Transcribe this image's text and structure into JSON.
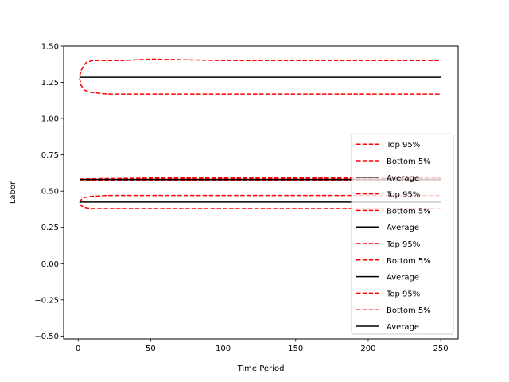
{
  "chart_data": {
    "type": "line",
    "title": "",
    "xlabel": "Time Period",
    "ylabel": "Labor",
    "xlim": [
      -10,
      262
    ],
    "ylim": [
      -0.52,
      1.5
    ],
    "xticks": [
      0,
      50,
      100,
      150,
      200,
      250
    ],
    "yticks": [
      -0.5,
      -0.25,
      0.0,
      0.25,
      0.5,
      0.75,
      1.0,
      1.25,
      1.5
    ],
    "xtick_labels": [
      "0",
      "50",
      "100",
      "150",
      "200",
      "250"
    ],
    "ytick_labels": [
      "−0.50",
      "−0.25",
      "0.00",
      "0.25",
      "0.50",
      "0.75",
      "1.00",
      "1.25",
      "1.50"
    ],
    "grid": false,
    "legend_position": "lower-right",
    "colors": {
      "band": "#ff0000",
      "average": "#000000"
    },
    "series": [
      {
        "name": "Top 95%",
        "style": "dashed",
        "color": "#ff0000",
        "x": [
          1,
          2,
          4,
          6,
          10,
          20,
          30,
          50,
          100,
          150,
          200,
          250
        ],
        "y": [
          1.29,
          1.33,
          1.37,
          1.39,
          1.4,
          1.4,
          1.4,
          1.41,
          1.4,
          1.4,
          1.4,
          1.4
        ]
      },
      {
        "name": "Bottom 5%",
        "style": "dashed",
        "color": "#ff0000",
        "x": [
          1,
          2,
          4,
          6,
          10,
          20,
          30,
          50,
          100,
          150,
          200,
          250
        ],
        "y": [
          1.28,
          1.23,
          1.2,
          1.19,
          1.18,
          1.17,
          1.17,
          1.17,
          1.17,
          1.17,
          1.17,
          1.17
        ]
      },
      {
        "name": "Average",
        "style": "solid",
        "color": "#000000",
        "x": [
          1,
          50,
          100,
          150,
          200,
          250
        ],
        "y": [
          1.285,
          1.285,
          1.285,
          1.285,
          1.285,
          1.285
        ]
      },
      {
        "name": "Top 95%",
        "style": "dashed",
        "color": "#ff0000",
        "x": [
          1,
          10,
          50,
          100,
          150,
          200,
          250
        ],
        "y": [
          0.58,
          0.585,
          0.59,
          0.59,
          0.59,
          0.59,
          0.59
        ]
      },
      {
        "name": "Bottom 5%",
        "style": "dashed",
        "color": "#ff0000",
        "x": [
          1,
          10,
          50,
          100,
          150,
          200,
          250
        ],
        "y": [
          0.58,
          0.575,
          0.575,
          0.575,
          0.575,
          0.575,
          0.575
        ]
      },
      {
        "name": "Average",
        "style": "solid",
        "color": "#000000",
        "x": [
          1,
          250
        ],
        "y": [
          0.58,
          0.58
        ]
      },
      {
        "name": "Top 95%",
        "style": "dashed",
        "color": "#ff0000",
        "x": [
          1,
          2,
          4,
          6,
          10,
          20,
          30,
          50,
          100,
          150,
          200,
          250
        ],
        "y": [
          0.42,
          0.44,
          0.455,
          0.46,
          0.465,
          0.47,
          0.47,
          0.47,
          0.47,
          0.47,
          0.47,
          0.47
        ]
      },
      {
        "name": "Bottom 5%",
        "style": "dashed",
        "color": "#ff0000",
        "x": [
          1,
          2,
          4,
          6,
          10,
          20,
          30,
          50,
          100,
          150,
          200,
          250
        ],
        "y": [
          0.41,
          0.4,
          0.39,
          0.385,
          0.38,
          0.38,
          0.38,
          0.38,
          0.38,
          0.38,
          0.38,
          0.38
        ]
      },
      {
        "name": "Average",
        "style": "solid",
        "color": "#000000",
        "x": [
          1,
          250
        ],
        "y": [
          0.425,
          0.425
        ]
      },
      {
        "name": "Top 95%",
        "style": "dashed",
        "color": "#ff0000",
        "x": [
          1,
          250
        ],
        "y": [
          0.583,
          0.583
        ]
      },
      {
        "name": "Bottom 5%",
        "style": "dashed",
        "color": "#ff0000",
        "x": [
          1,
          250
        ],
        "y": [
          0.577,
          0.577
        ]
      },
      {
        "name": "Average",
        "style": "solid",
        "color": "#000000",
        "x": [
          1,
          250
        ],
        "y": [
          0.58,
          0.58
        ]
      }
    ]
  }
}
